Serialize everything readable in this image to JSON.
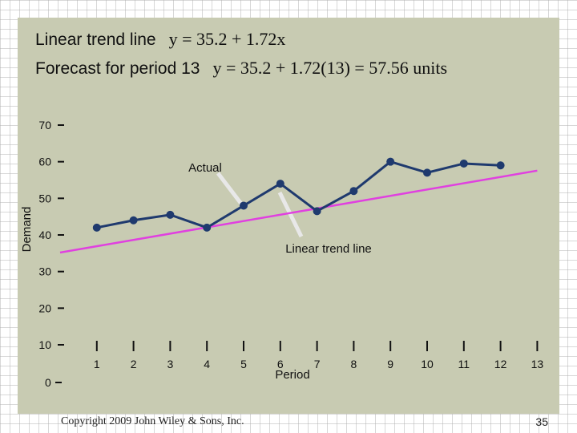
{
  "header": {
    "line1_label": "Linear trend line",
    "line1_equation": "y = 35.2 + 1.72x",
    "line2_label": "Forecast for period 13",
    "line2_equation": "y = 35.2 + 1.72(13)  = 57.56 units"
  },
  "footer": {
    "copyright": "Copyright 2009 John Wiley & Sons, Inc.",
    "page_number": "35"
  },
  "colors": {
    "panel": "#c8cbb2",
    "actual_line": "#1f3a6e",
    "trend_line": "#e040e0",
    "callout": "#e8e8e8"
  },
  "chart_data": {
    "type": "line",
    "xlabel": "Period",
    "ylabel": "Demand",
    "ylim": [
      0,
      70
    ],
    "xlim": [
      0,
      13
    ],
    "y_ticks": [
      10,
      20,
      30,
      40,
      50,
      60,
      70
    ],
    "y_zero_label": "0",
    "x_ticks": [
      1,
      2,
      3,
      4,
      5,
      6,
      7,
      8,
      9,
      10,
      11,
      12,
      13
    ],
    "series": [
      {
        "name": "Actual",
        "x": [
          1,
          2,
          3,
          4,
          5,
          6,
          7,
          8,
          9,
          10,
          11,
          12
        ],
        "values": [
          42,
          44,
          45.5,
          42,
          48,
          54,
          46.5,
          52,
          60,
          57,
          59.5,
          59
        ]
      }
    ],
    "trend": {
      "name": "Linear trend line",
      "intercept": 35.2,
      "slope": 1.72
    },
    "grid": false
  }
}
